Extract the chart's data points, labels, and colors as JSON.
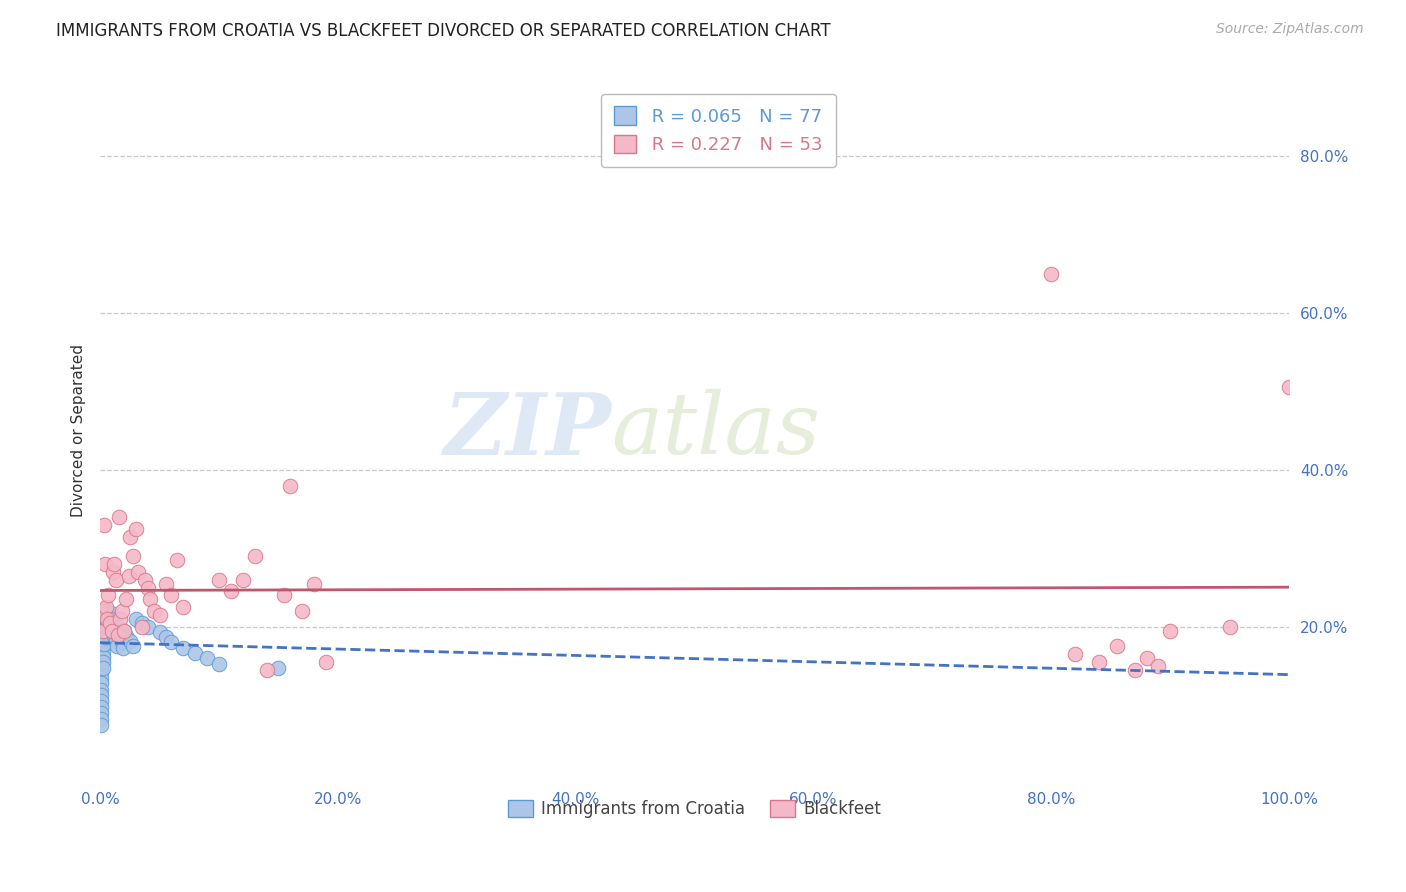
{
  "title": "IMMIGRANTS FROM CROATIA VS BLACKFEET DIVORCED OR SEPARATED CORRELATION CHART",
  "source": "Source: ZipAtlas.com",
  "ylabel": "Divorced or Separated",
  "xlim": [
    0,
    1.0
  ],
  "ylim": [
    0,
    0.9
  ],
  "xticks": [
    0.0,
    0.2,
    0.4,
    0.6,
    0.8,
    1.0
  ],
  "yticks": [
    0.2,
    0.4,
    0.6,
    0.8
  ],
  "xticklabels": [
    "0.0%",
    "20.0%",
    "40.0%",
    "60.0%",
    "80.0%",
    "100.0%"
  ],
  "yticklabels": [
    "20.0%",
    "40.0%",
    "60.0%",
    "80.0%"
  ],
  "series": [
    {
      "name": "Immigrants from Croatia",
      "color": "#adc6e8",
      "edge_color": "#5b9bd5",
      "R": 0.065,
      "N": 77,
      "trend_color": "#4472c4",
      "trend_dashed": true,
      "x": [
        0.001,
        0.001,
        0.001,
        0.001,
        0.001,
        0.001,
        0.001,
        0.001,
        0.001,
        0.001,
        0.001,
        0.001,
        0.001,
        0.001,
        0.001,
        0.001,
        0.002,
        0.002,
        0.002,
        0.002,
        0.002,
        0.002,
        0.002,
        0.002,
        0.002,
        0.003,
        0.003,
        0.003,
        0.003,
        0.003,
        0.003,
        0.003,
        0.004,
        0.004,
        0.004,
        0.004,
        0.004,
        0.005,
        0.005,
        0.005,
        0.005,
        0.006,
        0.006,
        0.006,
        0.007,
        0.007,
        0.007,
        0.008,
        0.008,
        0.009,
        0.009,
        0.01,
        0.01,
        0.011,
        0.012,
        0.013,
        0.014,
        0.015,
        0.016,
        0.017,
        0.018,
        0.019,
        0.02,
        0.022,
        0.025,
        0.028,
        0.03,
        0.035,
        0.04,
        0.05,
        0.055,
        0.06,
        0.07,
        0.08,
        0.09,
        0.1,
        0.15
      ],
      "y": [
        0.185,
        0.178,
        0.172,
        0.165,
        0.158,
        0.15,
        0.143,
        0.135,
        0.128,
        0.12,
        0.113,
        0.105,
        0.098,
        0.09,
        0.083,
        0.075,
        0.2,
        0.195,
        0.188,
        0.182,
        0.175,
        0.168,
        0.162,
        0.155,
        0.148,
        0.22,
        0.213,
        0.205,
        0.198,
        0.192,
        0.185,
        0.178,
        0.215,
        0.208,
        0.2,
        0.193,
        0.187,
        0.222,
        0.215,
        0.208,
        0.2,
        0.218,
        0.21,
        0.203,
        0.21,
        0.205,
        0.198,
        0.215,
        0.208,
        0.218,
        0.21,
        0.205,
        0.198,
        0.192,
        0.188,
        0.182,
        0.175,
        0.2,
        0.193,
        0.187,
        0.18,
        0.173,
        0.195,
        0.188,
        0.182,
        0.175,
        0.21,
        0.205,
        0.2,
        0.193,
        0.187,
        0.18,
        0.173,
        0.167,
        0.16,
        0.153,
        0.147
      ]
    },
    {
      "name": "Blackfeet",
      "color": "#f4b8c8",
      "edge_color": "#d9768a",
      "R": 0.227,
      "N": 53,
      "trend_color": "#c0556e",
      "trend_dashed": false,
      "x": [
        0.001,
        0.002,
        0.003,
        0.004,
        0.005,
        0.006,
        0.007,
        0.008,
        0.01,
        0.011,
        0.012,
        0.013,
        0.015,
        0.016,
        0.017,
        0.018,
        0.02,
        0.022,
        0.024,
        0.025,
        0.028,
        0.03,
        0.032,
        0.035,
        0.038,
        0.04,
        0.042,
        0.045,
        0.05,
        0.055,
        0.06,
        0.065,
        0.07,
        0.1,
        0.11,
        0.12,
        0.13,
        0.14,
        0.155,
        0.16,
        0.17,
        0.18,
        0.19,
        0.8,
        0.82,
        0.84,
        0.855,
        0.87,
        0.88,
        0.89,
        0.9,
        0.95,
        1.0
      ],
      "y": [
        0.22,
        0.195,
        0.33,
        0.28,
        0.225,
        0.21,
        0.24,
        0.205,
        0.195,
        0.27,
        0.28,
        0.26,
        0.19,
        0.34,
        0.21,
        0.22,
        0.195,
        0.235,
        0.265,
        0.315,
        0.29,
        0.325,
        0.27,
        0.2,
        0.26,
        0.25,
        0.235,
        0.22,
        0.215,
        0.255,
        0.24,
        0.285,
        0.225,
        0.26,
        0.245,
        0.26,
        0.29,
        0.145,
        0.24,
        0.38,
        0.22,
        0.255,
        0.155,
        0.65,
        0.165,
        0.155,
        0.175,
        0.145,
        0.16,
        0.15,
        0.195,
        0.2,
        0.505
      ]
    }
  ],
  "watermark_zip": "ZIP",
  "watermark_atlas": "atlas",
  "background_color": "#ffffff",
  "grid_color": "#c8c8c8",
  "title_fontsize": 12,
  "axis_label_fontsize": 11,
  "tick_fontsize": 11,
  "source_fontsize": 10
}
